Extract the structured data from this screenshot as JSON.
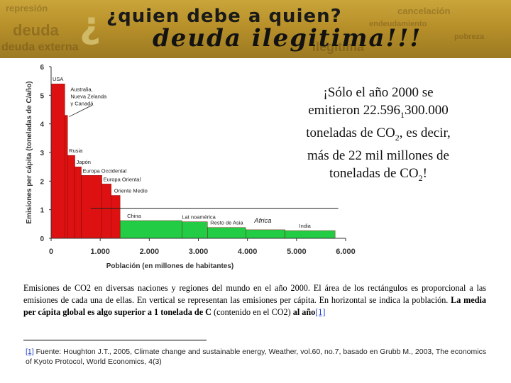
{
  "banner": {
    "title_line1": "¿quien debe a quien?",
    "title_line2": "deuda ilegitima!!!",
    "collage_words": [
      "represión",
      "deuda",
      "cancelación",
      "endeudamiento",
      "pobreza",
      "ilegitima",
      "deuda externa"
    ]
  },
  "highlight": {
    "line1": "¡Sólo el año 2000 se",
    "line2_pre": "emitieron 22.596",
    "line2_sub": "1",
    "line2_post": "300.000",
    "line3_pre": "toneladas de CO",
    "line3_sub": "2",
    "line3_post": ", es decir,",
    "line4": "más de 22 mil millones de",
    "line5_pre": "toneladas de CO",
    "line5_sub": "2",
    "line5_post": "!"
  },
  "caption": {
    "normal": "Emisiones de CO2 en diversas naciones y regiones del mundo en el año 2000. El área de los rectángulos es proporcional a las emisiones de cada una de ellas. En vertical se representan las emisiones per cápita. En horizontal se indica la población. ",
    "bold": "La media per cápita global es algo superior a 1 tonelada de C",
    "after": " (contenido en el CO2) ",
    "bold_end": "al año",
    "ref": "[1]"
  },
  "footnote": {
    "ref": "[1]",
    "text": " Fuente: Houghton J.T., 2005, Climate change and sustainable energy, Weather, vol.60, no.7, basado en Grubb M., 2003, The economics of Kyoto Protocol, World Economics, 4(3)"
  },
  "colors": {
    "red": "#dd1111",
    "green": "#22cc44",
    "axis": "#333333"
  },
  "chart_data": {
    "type": "bar",
    "xlabel": "Población (en millones de habitantes)",
    "ylabel": "Emisiones per cápita (toneladas de C/año)",
    "xlim": [
      0,
      6000
    ],
    "ylim": [
      0,
      6
    ],
    "xticks": [
      "0",
      "1.000",
      "2.000",
      "3.000",
      "4.000",
      "5.000",
      "6.000"
    ],
    "yticks": [
      "0",
      "1",
      "2",
      "3",
      "4",
      "5",
      "6"
    ],
    "mean_line": 1.05,
    "regions": [
      {
        "name": "USA",
        "population": 280,
        "value": 5.4,
        "color": "red"
      },
      {
        "name": "Australia, Nueva Zelanda y Canadá",
        "population": 55,
        "value": 4.3,
        "color": "red"
      },
      {
        "name": "Rusia",
        "population": 150,
        "value": 2.9,
        "color": "red"
      },
      {
        "name": "Japón",
        "population": 130,
        "value": 2.5,
        "color": "red"
      },
      {
        "name": "Europa Occidental",
        "population": 420,
        "value": 2.2,
        "color": "red"
      },
      {
        "name": "Europa Oriental",
        "population": 190,
        "value": 1.9,
        "color": "red"
      },
      {
        "name": "Oriente Medio",
        "population": 180,
        "value": 1.5,
        "color": "red"
      },
      {
        "name": "China",
        "population": 1260,
        "value": 0.62,
        "color": "green"
      },
      {
        "name": "Lat noamérica",
        "population": 520,
        "value": 0.58,
        "color": "green"
      },
      {
        "name": "Resto de Asia",
        "population": 780,
        "value": 0.38,
        "color": "green"
      },
      {
        "name": "Africa",
        "population": 800,
        "value": 0.3,
        "color": "green"
      },
      {
        "name": "India",
        "population": 1020,
        "value": 0.27,
        "color": "green"
      }
    ]
  }
}
